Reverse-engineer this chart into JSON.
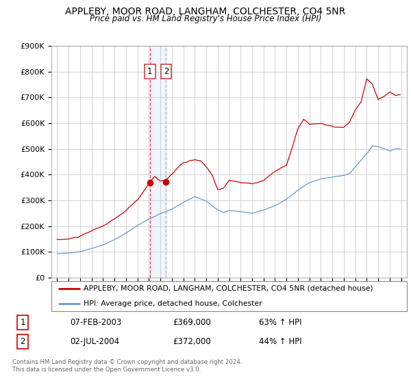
{
  "title": "APPLEBY, MOOR ROAD, LANGHAM, COLCHESTER, CO4 5NR",
  "subtitle": "Price paid vs. HM Land Registry's House Price Index (HPI)",
  "legend_label_red": "APPLEBY, MOOR ROAD, LANGHAM, COLCHESTER, CO4 5NR (detached house)",
  "legend_label_blue": "HPI: Average price, detached house, Colchester",
  "sale1_date": "07-FEB-2003",
  "sale1_price": "£369,000",
  "sale1_hpi": "63% ↑ HPI",
  "sale2_date": "02-JUL-2004",
  "sale2_price": "£372,000",
  "sale2_hpi": "44% ↑ HPI",
  "footer": "Contains HM Land Registry data © Crown copyright and database right 2024.\nThis data is licensed under the Open Government Licence v3.0.",
  "red_color": "#cc0000",
  "blue_color": "#6699cc",
  "marker1_x": 2003.08,
  "marker2_x": 2004.5,
  "marker1_y": 369000,
  "marker2_y": 372000,
  "vline1_x": 2003.08,
  "vline2_x": 2004.5,
  "ylim": [
    0,
    900000
  ],
  "xlim": [
    1994.5,
    2025.5
  ]
}
